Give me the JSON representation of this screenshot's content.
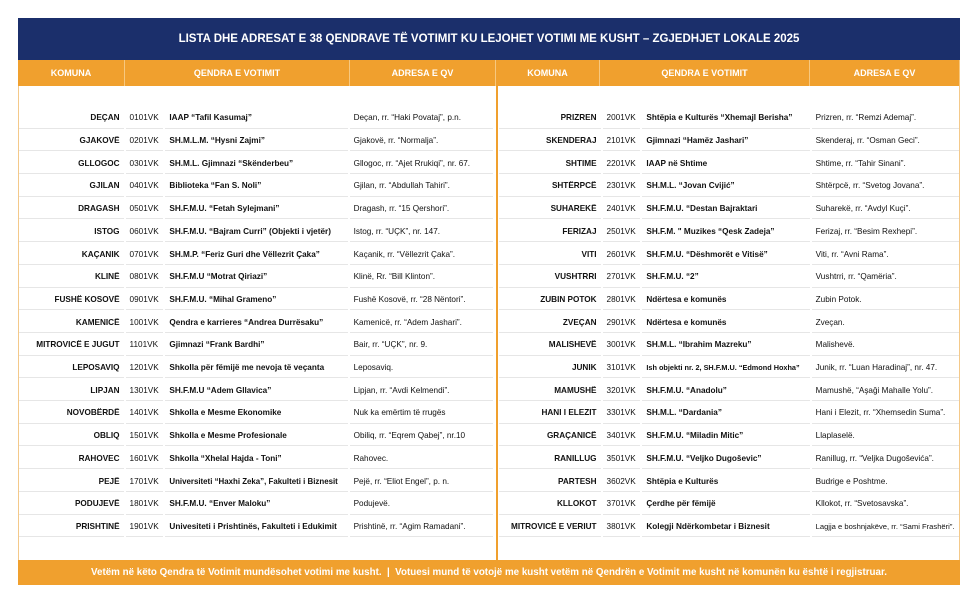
{
  "title": "LISTA DHE ADRESAT E 38 QENDRAVE TË VOTIMIT KU LEJOHET VOTIMI ME KUSHT – ZGJEDHJET LOKALE 2025",
  "header": {
    "left": [
      "KOMUNA",
      "QENDRA E VOTIMIT",
      "ADRESA E QV"
    ],
    "right": [
      "KOMUNA",
      "QENDRA E VOTIMIT",
      "ADRESA E QV"
    ]
  },
  "rows": [
    {
      "left": [
        "DEÇAN",
        "0101VK",
        "IAAP “Tafil Kasumaj”",
        "Deçan, rr. “Haki Povataj”, p.n."
      ],
      "right": [
        "PRIZREN",
        "2001VK",
        "Shtëpia e Kulturës “Xhemajl Berisha”",
        "Prizren, rr. “Remzi Ademaj”."
      ]
    },
    {
      "left": [
        "GJAKOVË",
        "0201VK",
        "SH.M.L.M. “Hysni Zajmi”",
        "Gjakovë, rr. “Normalja”."
      ],
      "right": [
        "SKENDERAJ",
        "2101VK",
        "Gjimnazi “Hamëz Jashari”",
        "Skenderaj, rr. “Osman Geci”."
      ]
    },
    {
      "left": [
        "GLLOGOC",
        "0301VK",
        "SH.M.L. Gjimnazi “Skënderbeu”",
        "Gllogoc, rr. “Ajet Rrukiqi”, nr. 67."
      ],
      "right": [
        "SHTIME",
        "2201VK",
        "IAAP në Shtime",
        "Shtime, rr. “Tahir Sinani”."
      ]
    },
    {
      "left": [
        "GJILAN",
        "0401VK",
        "Biblioteka “Fan S. Noli”",
        "Gjilan, rr. “Abdullah Tahiri”."
      ],
      "right": [
        "SHTËRPCË",
        "2301VK",
        "SH.M.L. “Jovan Cvijić”",
        "Shtërpcë, rr. “Svetog Jovana”."
      ]
    },
    {
      "left": [
        "DRAGASH",
        "0501VK",
        "SH.F.M.U. “Fetah Sylejmani”",
        "Dragash, rr. “15 Qershori”."
      ],
      "right": [
        "SUHAREKË",
        "2401VK",
        "SH.F.M.U. “Destan Bajraktari",
        "Suharekë, rr. “Avdyl Kuçi”."
      ]
    },
    {
      "left": [
        "ISTOG",
        "0601VK",
        "SH.F.M.U. “Bajram Curri” (Objekti i vjetër)",
        "Istog, rr. “UÇK”, nr. 147."
      ],
      "right": [
        "FERIZAJ",
        "2501VK",
        "SH.F.M. \" Muzikes “Qesk Zadeja”",
        "Ferizaj, rr. “Besim Rexhepi”."
      ]
    },
    {
      "left": [
        "KAÇANIK",
        "0701VK",
        "SH.M.P. “Feriz Guri dhe Vëllezrit Çaka”",
        "Kaçanik, rr. “Vëllezrit Çaka”."
      ],
      "right": [
        "VITI",
        "2601VK",
        "SH.F.M.U. “Dëshmorët e Vitisë”",
        "Viti, rr. “Avni Rama”."
      ]
    },
    {
      "left": [
        "KLINË",
        "0801VK",
        "SH.F.M.U “Motrat Qiriazi”",
        "Klinë, Rr. “Bill Klinton”."
      ],
      "right": [
        "VUSHTRRI",
        "2701VK",
        "SH.F.M.U. “2”",
        "Vushtrri, rr. “Qamëria”."
      ]
    },
    {
      "left": [
        "FUSHË KOSOVË",
        "0901VK",
        "SH.F.M.U. “Mihal Grameno”",
        "Fushë Kosovë, rr. “28 Nëntori”."
      ],
      "right": [
        "ZUBIN POTOK",
        "2801VK",
        "Ndërtesa e komunës",
        "Zubin Potok."
      ]
    },
    {
      "left": [
        "KAMENICË",
        "1001VK",
        "Qendra e karrieres “Andrea Durrësaku”",
        "Kamenicë, rr. “Adem Jashari”."
      ],
      "right": [
        "ZVEÇAN",
        "2901VK",
        "Ndërtesa e komunës",
        "Zveçan."
      ]
    },
    {
      "left": [
        "MITROVICË E JUGUT",
        "1101VK",
        "Gjimnazi “Frank Bardhi”",
        "Bair, rr. “UÇK”, nr. 9."
      ],
      "right": [
        "MALISHEVË",
        "3001VK",
        "SH.M.L. “Ibrahim Mazreku”",
        "Malishevë."
      ]
    },
    {
      "left": [
        "LEPOSAVIQ",
        "1201VK",
        "Shkolla për fëmijë me nevoja të veçanta",
        "Leposaviq."
      ],
      "right": [
        "JUNIK",
        "3101VK",
        "Ish objekti nr. 2, SH.F.M.U. “Edmond Hoxha”",
        "Junik, rr. “Luan Haradinaj”, nr. 47."
      ]
    },
    {
      "left": [
        "LIPJAN",
        "1301VK",
        "SH.F.M.U “Adem Gllavica”",
        "Lipjan, rr. “Avdi Kelmendi”."
      ],
      "right": [
        "MAMUSHË",
        "3201VK",
        "SH.F.M.U. “Anadolu”",
        "Mamushë, “Aşaği Mahalle Yolu”."
      ]
    },
    {
      "left": [
        "NOVOBËRDË",
        "1401VK",
        "Shkolla e Mesme Ekonomike",
        "Nuk ka emërtim të rrugës"
      ],
      "right": [
        "HANI I ELEZIT",
        "3301VK",
        "SH.M.L. “Dardania”",
        "Hani i Elezit, rr. “Xhemsedin Suma”."
      ]
    },
    {
      "left": [
        "OBLIQ",
        "1501VK",
        "Shkolla e Mesme Profesionale",
        "Obiliq, rr. “Eqrem Qabej”, nr.10"
      ],
      "right": [
        "GRAÇANICË",
        "3401VK",
        "SH.F.M.U. “Miladin Mitic”",
        "Llaplaselë."
      ]
    },
    {
      "left": [
        "RAHOVEC",
        "1601VK",
        "Shkolla “Xhelal Hajda - Toni”",
        "Rahovec."
      ],
      "right": [
        "RANILLUG",
        "3501VK",
        "SH.F.M.U. “Veljko Dugoševic”",
        "Ranillug, rr. “Veljka Dugoševića”."
      ]
    },
    {
      "left": [
        "PEJË",
        "1701VK",
        "Universiteti “Haxhi Zeka”, Fakulteti i Biznesit",
        "Pejë, rr. “Eliot Engel”, p. n."
      ],
      "right": [
        "PARTESH",
        "3602VK",
        "Shtëpia e Kulturës",
        "Budrige e Poshtme."
      ]
    },
    {
      "left": [
        "PODUJEVË",
        "1801VK",
        "SH.F.M.U. “Enver Maloku”",
        "Podujevë."
      ],
      "right": [
        "KLLOKOT",
        "3701VK",
        "Çerdhe për fëmijë",
        "Kllokot, rr. “Svetosavska”."
      ]
    },
    {
      "left": [
        "PRISHTINË",
        "1901VK",
        "Univesiteti i Prishtinës, Fakulteti i Edukimit",
        "Prishtinë, rr. “Agim Ramadani”."
      ],
      "right": [
        "MITROVICË E VERIUT",
        "3801VK",
        "Kolegji Ndërkombetar i Biznesit",
        "Lagjja e boshnjakëve, rr. “Sami Frashëri”."
      ]
    }
  ],
  "footer": "Vetëm në këto Qendra të Votimit mundësohet votimi me kusht.  |  Votuesi mund të votojë me kusht vetëm në Qendrën e Votimit me kusht në komunën ku është i regjistruar."
}
